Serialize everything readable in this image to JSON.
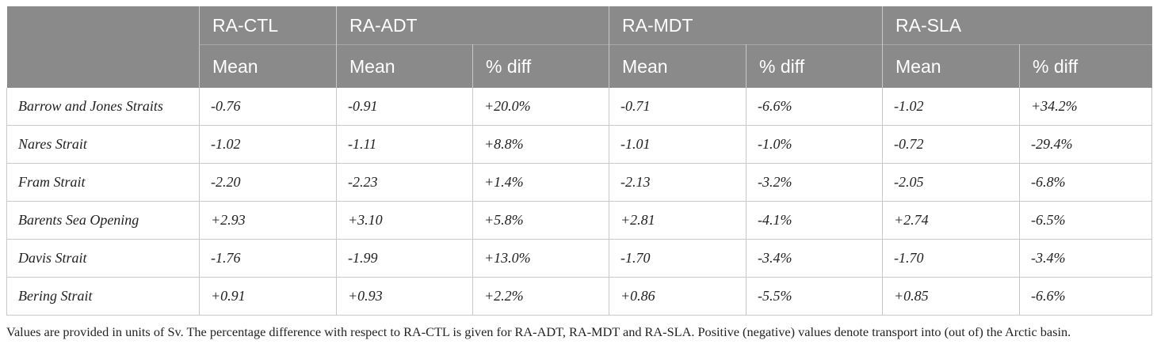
{
  "table": {
    "groups": [
      {
        "label": "RA-CTL",
        "span": 1
      },
      {
        "label": "RA-ADT",
        "span": 2
      },
      {
        "label": "RA-MDT",
        "span": 2
      },
      {
        "label": "RA-SLA",
        "span": 2
      }
    ],
    "subheaders": [
      "Mean",
      "Mean",
      "% diff",
      "Mean",
      "% diff",
      "Mean",
      "% diff"
    ],
    "rows": [
      {
        "label": "Barrow and Jones Straits",
        "cells": [
          "-0.76",
          "-0.91",
          "+20.0%",
          "-0.71",
          "-6.6%",
          "-1.02",
          "+34.2%"
        ]
      },
      {
        "label": "Nares Strait",
        "cells": [
          "-1.02",
          "-1.11",
          "+8.8%",
          "-1.01",
          "-1.0%",
          "-0.72",
          "-29.4%"
        ]
      },
      {
        "label": "Fram Strait",
        "cells": [
          "-2.20",
          "-2.23",
          "+1.4%",
          "-2.13",
          "-3.2%",
          "-2.05",
          "-6.8%"
        ]
      },
      {
        "label": "Barents Sea Opening",
        "cells": [
          "+2.93",
          "+3.10",
          "+5.8%",
          "+2.81",
          "-4.1%",
          "+2.74",
          "-6.5%"
        ]
      },
      {
        "label": "Davis Strait",
        "cells": [
          "-1.76",
          "-1.99",
          "+13.0%",
          "-1.70",
          "-3.4%",
          "-1.70",
          "-3.4%"
        ]
      },
      {
        "label": "Bering Strait",
        "cells": [
          "+0.91",
          "+0.93",
          "+2.2%",
          "+0.86",
          "-5.5%",
          "+0.85",
          "-6.6%"
        ]
      }
    ]
  },
  "caption": "Values are provided in units of Sv. The percentage difference with respect to RA-CTL is given for RA-ADT, RA-MDT and RA-SLA. Positive (negative) values denote transport into (out of) the Arctic basin."
}
